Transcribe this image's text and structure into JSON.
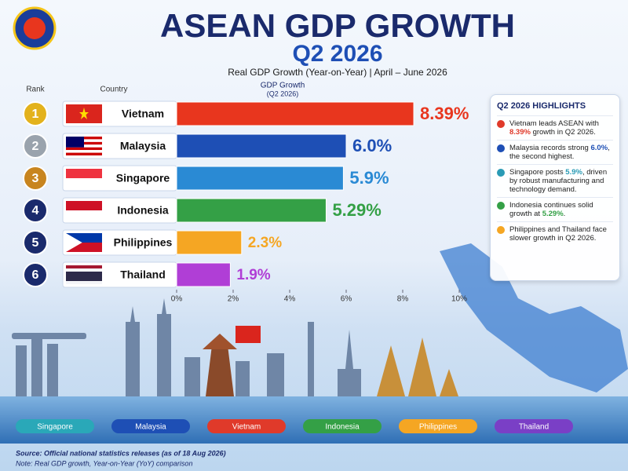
{
  "chart_data": {
    "type": "bar",
    "orientation": "horizontal",
    "title": "ASEAN GDP GROWTH",
    "subtitle": "Q2 2026",
    "description": "Real GDP Growth (Year-on-Year) | April – June 2026",
    "rank_header": "Rank",
    "country_header": "Country",
    "value_header": "GDP Growth",
    "value_subheader": "(Q2 2026)",
    "ranks": [
      1,
      2,
      3,
      4,
      5,
      6
    ],
    "categories": [
      "Vietnam",
      "Malaysia",
      "Singapore",
      "Indonesia",
      "Philippines",
      "Thailand"
    ],
    "values": [
      8.39,
      6.0,
      5.9,
      5.29,
      2.3,
      1.9
    ],
    "value_labels": [
      "8.39%",
      "6.0%",
      "5.9%",
      "5.29%",
      "2.3%",
      "1.9%"
    ],
    "colors": [
      "#e8361e",
      "#1e4fb5",
      "#2a8ad4",
      "#34a046",
      "#f5a623",
      "#b03ed6"
    ],
    "xlim": [
      0,
      10
    ],
    "xticks": [
      {
        "value": 0,
        "label": "0%"
      },
      {
        "value": 2,
        "label": "2%"
      },
      {
        "value": 4,
        "label": "4%"
      },
      {
        "value": 6,
        "label": "6%"
      },
      {
        "value": 8,
        "label": "8%"
      },
      {
        "value": 10,
        "label": "10%"
      }
    ],
    "grid": false,
    "highlights": {
      "title": "Q2 2026 HIGHLIGHTS",
      "items": [
        {
          "color": "#e03a2a",
          "parts": [
            "Vietnam leads ASEAN with ",
            "8.39%",
            " growth in Q2 2026."
          ]
        },
        {
          "color": "#1e4fb5",
          "parts": [
            "Malaysia records strong ",
            "6.0%",
            ", the second highest."
          ]
        },
        {
          "color": "#2a9bb5",
          "parts": [
            "Singapore posts ",
            "5.9%",
            ", driven by robust manufacturing and technology demand."
          ]
        },
        {
          "color": "#34a046",
          "parts": [
            "Indonesia continues solid growth at ",
            "5.29%",
            "."
          ]
        },
        {
          "color": "#f5a623",
          "parts": [
            "Philippines and Thailand face slower growth in Q2 2026."
          ]
        }
      ]
    },
    "skyline_labels": [
      {
        "text": "Singapore",
        "color": "#2aa8b8"
      },
      {
        "text": "Malaysia",
        "color": "#1e4fb5"
      },
      {
        "text": "Vietnam",
        "color": "#e03a2a"
      },
      {
        "text": "Indonesia",
        "color": "#34a046"
      },
      {
        "text": "Philippines",
        "color": "#f5a623"
      },
      {
        "text": "Thailand",
        "color": "#7a3fc6"
      }
    ],
    "source": "Source: Official national statistics releases (as of 18 Aug 2026)",
    "note": "Note: Real GDP growth, Year-on-Year (YoY) comparison"
  }
}
